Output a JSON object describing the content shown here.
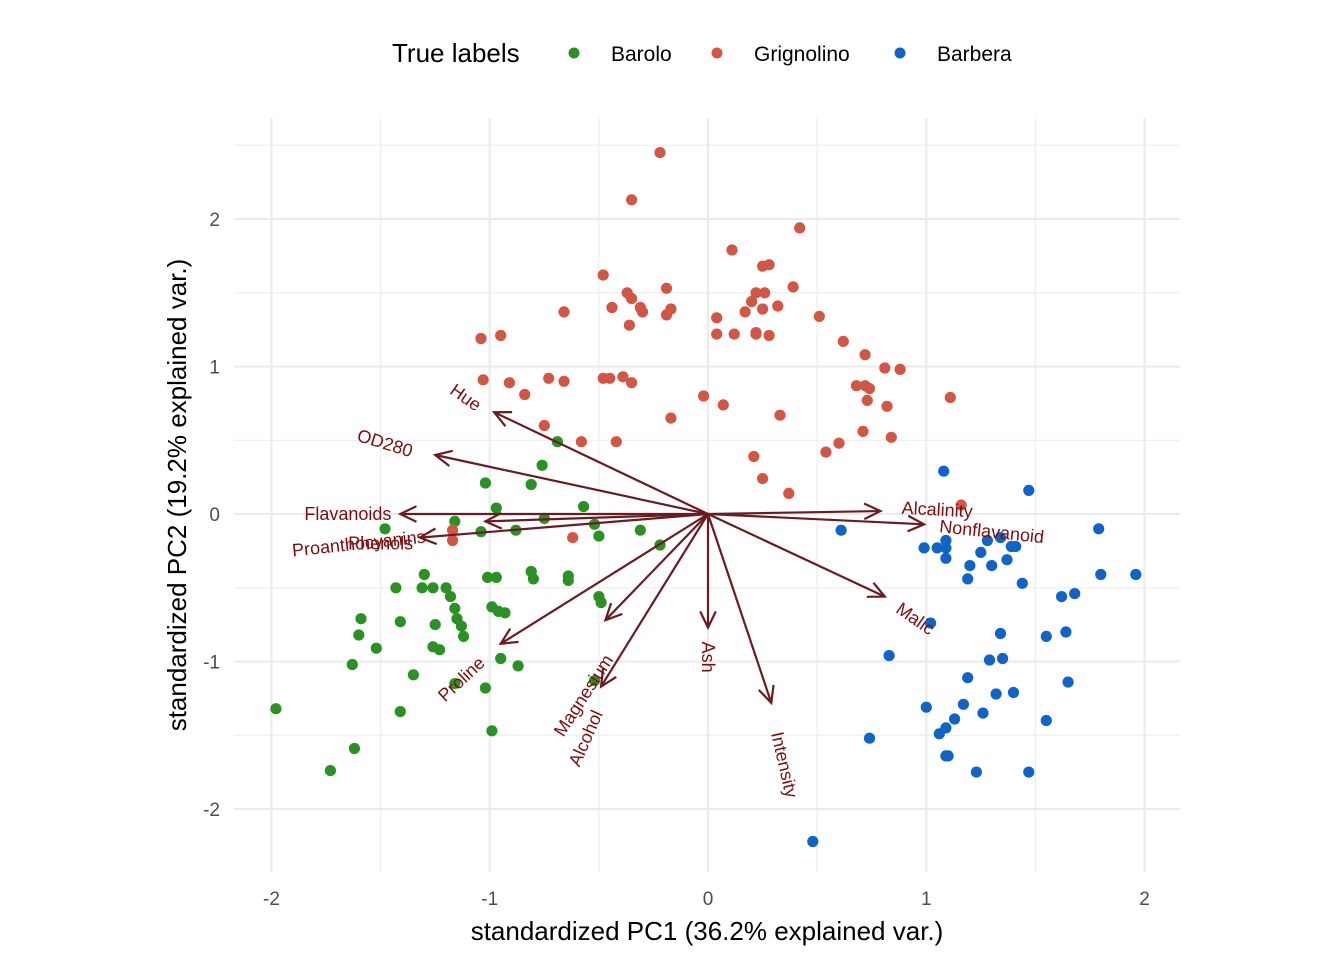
{
  "chart_data": {
    "type": "scatter",
    "subtype": "pca-biplot",
    "title": "",
    "xlabel": "standardized PC1 (36.2% explained var.)",
    "ylabel": "standardized PC2 (19.2% explained var.)",
    "xlim": [
      -2.17,
      2.17
    ],
    "ylim": [
      -2.43,
      2.67
    ],
    "xticks": [
      -2,
      -1,
      0,
      1,
      2
    ],
    "yticks": [
      -2,
      -1,
      0,
      1,
      2
    ],
    "xtick_labels": [
      "-2",
      "-1",
      "0",
      "1",
      "2"
    ],
    "ytick_labels": [
      "-2",
      "-1",
      "0",
      "1",
      "2"
    ],
    "grid": true,
    "legend": {
      "title": "True labels",
      "position": "top",
      "entries": [
        {
          "name": "Barolo",
          "color": "#2a9222"
        },
        {
          "name": "Grignolino",
          "color": "#d15643"
        },
        {
          "name": "Barbera",
          "color": "#1164c7"
        }
      ]
    },
    "series": [
      {
        "name": "Barolo",
        "color": "#2a9222",
        "points": [
          [
            -0.69,
            0.49
          ],
          [
            -0.76,
            0.33
          ],
          [
            -1.02,
            0.21
          ],
          [
            -0.81,
            0.2
          ],
          [
            -0.97,
            0.04
          ],
          [
            -0.57,
            0.05
          ],
          [
            -0.75,
            -0.03
          ],
          [
            -0.88,
            -0.11
          ],
          [
            -1.04,
            -0.12
          ],
          [
            -0.52,
            -0.07
          ],
          [
            -0.5,
            -0.15
          ],
          [
            -0.31,
            -0.11
          ],
          [
            -0.22,
            -0.21
          ],
          [
            -1.48,
            -0.1
          ],
          [
            -1.16,
            -0.05
          ],
          [
            -0.81,
            -0.39
          ],
          [
            -0.8,
            -0.44
          ],
          [
            -0.64,
            -0.42
          ],
          [
            -0.64,
            -0.45
          ],
          [
            -1.01,
            -0.43
          ],
          [
            -0.97,
            -0.43
          ],
          [
            -1.3,
            -0.41
          ],
          [
            -1.31,
            -0.5
          ],
          [
            -1.26,
            -0.5
          ],
          [
            -1.2,
            -0.5
          ],
          [
            -1.43,
            -0.5
          ],
          [
            -1.18,
            -0.56
          ],
          [
            -1.16,
            -0.64
          ],
          [
            -1.15,
            -0.71
          ],
          [
            -0.5,
            -0.56
          ],
          [
            -0.49,
            -0.6
          ],
          [
            -0.99,
            -0.63
          ],
          [
            -0.96,
            -0.66
          ],
          [
            -0.93,
            -0.67
          ],
          [
            -1.59,
            -0.71
          ],
          [
            -1.6,
            -0.82
          ],
          [
            -1.41,
            -0.73
          ],
          [
            -1.25,
            -0.75
          ],
          [
            -1.13,
            -0.76
          ],
          [
            -1.26,
            -0.9
          ],
          [
            -1.23,
            -0.92
          ],
          [
            -1.12,
            -0.83
          ],
          [
            -1.52,
            -0.91
          ],
          [
            -1.63,
            -1.02
          ],
          [
            -1.35,
            -1.09
          ],
          [
            -1.16,
            -1.15
          ],
          [
            -0.95,
            -0.98
          ],
          [
            -0.87,
            -1.03
          ],
          [
            -1.02,
            -1.18
          ],
          [
            -0.52,
            -1.13
          ],
          [
            -0.99,
            -1.47
          ],
          [
            -1.98,
            -1.32
          ],
          [
            -1.62,
            -1.59
          ],
          [
            -1.73,
            -1.74
          ],
          [
            -1.41,
            -1.34
          ]
        ]
      },
      {
        "name": "Grignolino",
        "color": "#d15643",
        "points": [
          [
            -0.22,
            2.45
          ],
          [
            -0.35,
            2.13
          ],
          [
            -0.48,
            1.62
          ],
          [
            -0.37,
            1.5
          ],
          [
            -0.35,
            1.46
          ],
          [
            -0.31,
            1.4
          ],
          [
            -0.44,
            1.4
          ],
          [
            -0.36,
            1.28
          ],
          [
            -0.19,
            1.53
          ],
          [
            -0.17,
            1.39
          ],
          [
            -0.19,
            1.35
          ],
          [
            -0.3,
            1.37
          ],
          [
            0.42,
            1.94
          ],
          [
            0.11,
            1.79
          ],
          [
            0.25,
            1.68
          ],
          [
            0.28,
            1.69
          ],
          [
            0.39,
            1.54
          ],
          [
            0.22,
            1.5
          ],
          [
            0.26,
            1.5
          ],
          [
            0.2,
            1.44
          ],
          [
            0.32,
            1.41
          ],
          [
            0.17,
            1.37
          ],
          [
            0.25,
            1.39
          ],
          [
            0.04,
            1.33
          ],
          [
            0.04,
            1.22
          ],
          [
            0.12,
            1.22
          ],
          [
            0.22,
            1.22
          ],
          [
            0.22,
            1.23
          ],
          [
            0.28,
            1.21
          ],
          [
            0.51,
            1.34
          ],
          [
            0.62,
            1.17
          ],
          [
            0.72,
            1.08
          ],
          [
            0.81,
            0.99
          ],
          [
            0.88,
            0.98
          ],
          [
            -1.04,
            1.19
          ],
          [
            -0.95,
            1.21
          ],
          [
            -0.66,
            1.37
          ],
          [
            -1.03,
            0.91
          ],
          [
            -0.91,
            0.89
          ],
          [
            -0.84,
            0.81
          ],
          [
            -0.73,
            0.92
          ],
          [
            -0.66,
            0.9
          ],
          [
            -0.48,
            0.92
          ],
          [
            -0.45,
            0.92
          ],
          [
            -0.39,
            0.93
          ],
          [
            -0.35,
            0.89
          ],
          [
            -0.75,
            0.6
          ],
          [
            -0.58,
            0.49
          ],
          [
            -0.42,
            0.49
          ],
          [
            -0.17,
            0.65
          ],
          [
            -0.02,
            0.8
          ],
          [
            0.07,
            0.74
          ],
          [
            0.33,
            0.67
          ],
          [
            0.68,
            0.87
          ],
          [
            0.72,
            0.87
          ],
          [
            0.74,
            0.85
          ],
          [
            0.73,
            0.77
          ],
          [
            0.82,
            0.73
          ],
          [
            0.71,
            0.56
          ],
          [
            0.84,
            0.52
          ],
          [
            0.54,
            0.42
          ],
          [
            0.6,
            0.48
          ],
          [
            0.21,
            0.39
          ],
          [
            0.25,
            0.24
          ],
          [
            0.37,
            0.14
          ],
          [
            1.11,
            0.79
          ],
          [
            1.16,
            0.06
          ],
          [
            -1.17,
            -0.11
          ],
          [
            -1.17,
            -0.18
          ],
          [
            -0.62,
            -0.16
          ]
        ]
      },
      {
        "name": "Barbera",
        "color": "#1164c7",
        "points": [
          [
            1.08,
            0.29
          ],
          [
            1.47,
            0.16
          ],
          [
            0.61,
            -0.11
          ],
          [
            0.99,
            -0.23
          ],
          [
            1.05,
            -0.23
          ],
          [
            1.09,
            -0.18
          ],
          [
            1.09,
            -0.23
          ],
          [
            1.09,
            -0.3
          ],
          [
            1.28,
            -0.18
          ],
          [
            1.34,
            -0.16
          ],
          [
            1.39,
            -0.22
          ],
          [
            1.25,
            -0.26
          ],
          [
            1.41,
            -0.22
          ],
          [
            1.37,
            -0.31
          ],
          [
            1.2,
            -0.35
          ],
          [
            1.3,
            -0.35
          ],
          [
            1.19,
            -0.44
          ],
          [
            1.44,
            -0.47
          ],
          [
            1.79,
            -0.1
          ],
          [
            1.8,
            -0.41
          ],
          [
            1.96,
            -0.41
          ],
          [
            1.62,
            -0.56
          ],
          [
            1.68,
            -0.54
          ],
          [
            1.02,
            -0.74
          ],
          [
            0.83,
            -0.96
          ],
          [
            1.34,
            -0.81
          ],
          [
            1.55,
            -0.83
          ],
          [
            1.64,
            -0.8
          ],
          [
            1.29,
            -0.99
          ],
          [
            1.35,
            -0.98
          ],
          [
            1.19,
            -1.11
          ],
          [
            1.65,
            -1.14
          ],
          [
            1.0,
            -1.31
          ],
          [
            1.17,
            -1.29
          ],
          [
            1.32,
            -1.22
          ],
          [
            1.26,
            -1.35
          ],
          [
            1.4,
            -1.21
          ],
          [
            1.55,
            -1.4
          ],
          [
            1.13,
            -1.39
          ],
          [
            1.06,
            -1.49
          ],
          [
            1.09,
            -1.45
          ],
          [
            0.74,
            -1.52
          ],
          [
            1.09,
            -1.64
          ],
          [
            1.1,
            -1.64
          ],
          [
            1.23,
            -1.75
          ],
          [
            1.47,
            -1.75
          ],
          [
            0.48,
            -2.22
          ]
        ]
      }
    ],
    "loadings": [
      {
        "name": "Flavanoids",
        "x": -1.41,
        "y": 0.0
      },
      {
        "name": "Phenols",
        "x": -1.02,
        "y": -0.05
      },
      {
        "name": "Proanthocyanins",
        "x": -1.32,
        "y": -0.16
      },
      {
        "name": "OD280",
        "x": -1.25,
        "y": 0.4
      },
      {
        "name": "Hue",
        "x": -0.98,
        "y": 0.69
      },
      {
        "name": "Proline",
        "x": -0.95,
        "y": -0.88
      },
      {
        "name": "Magnesium",
        "x": -0.47,
        "y": -0.72
      },
      {
        "name": "Alcohol",
        "x": -0.49,
        "y": -1.17
      },
      {
        "name": "Ash",
        "x": 0.0,
        "y": -0.77
      },
      {
        "name": "Intensity",
        "x": 0.29,
        "y": -1.28
      },
      {
        "name": "Malic",
        "x": 0.81,
        "y": -0.56
      },
      {
        "name": "Alcalinity",
        "x": 0.79,
        "y": 0.02
      },
      {
        "name": "Nonflavanoid",
        "x": 0.99,
        "y": -0.07
      }
    ],
    "loading_labels": [
      {
        "name": "Flavanoids",
        "x": -1.65,
        "y": 0.0,
        "angle": 0
      },
      {
        "name": "Phenols",
        "x": -1.5,
        "y": -0.2,
        "angle": 0
      },
      {
        "name": "Proanthocyanins",
        "x": -1.6,
        "y": -0.2,
        "angle": -6
      },
      {
        "name": "OD280",
        "x": -1.48,
        "y": 0.48,
        "angle": 17
      },
      {
        "name": "Hue",
        "x": -1.11,
        "y": 0.79,
        "angle": 35
      },
      {
        "name": "Proline",
        "x": -1.13,
        "y": -1.12,
        "angle": -43
      },
      {
        "name": "Magnesium",
        "x": -0.57,
        "y": -1.23,
        "angle": -57
      },
      {
        "name": "Alcohol",
        "x": -0.56,
        "y": -1.52,
        "angle": -66
      },
      {
        "name": "Ash",
        "x": 0.0,
        "y": -0.97,
        "angle": 90
      },
      {
        "name": "Intensity",
        "x": 0.35,
        "y": -1.7,
        "angle": 77
      },
      {
        "name": "Malic",
        "x": 0.95,
        "y": -0.71,
        "angle": 35
      },
      {
        "name": "Alcalinity",
        "x": 1.05,
        "y": 0.03,
        "angle": 3
      },
      {
        "name": "Nonflavanoid",
        "x": 1.3,
        "y": -0.12,
        "angle": 6
      }
    ],
    "arrow_color": "#6b1c22",
    "label_color": "#7b0f0f"
  }
}
